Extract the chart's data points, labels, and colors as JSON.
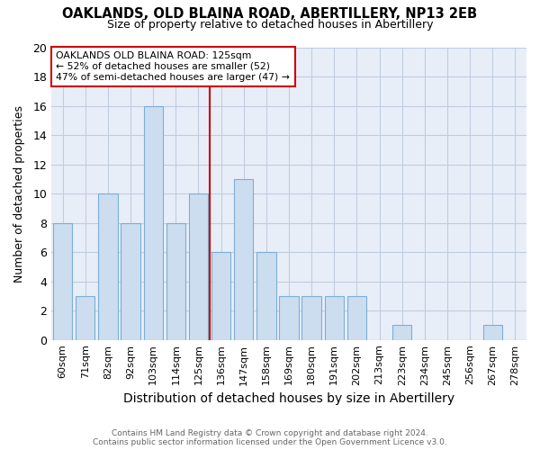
{
  "title": "OAKLANDS, OLD BLAINA ROAD, ABERTILLERY, NP13 2EB",
  "subtitle": "Size of property relative to detached houses in Abertillery",
  "xlabel": "Distribution of detached houses by size in Abertillery",
  "ylabel": "Number of detached properties",
  "categories": [
    "60sqm",
    "71sqm",
    "82sqm",
    "92sqm",
    "103sqm",
    "114sqm",
    "125sqm",
    "136sqm",
    "147sqm",
    "158sqm",
    "169sqm",
    "180sqm",
    "191sqm",
    "202sqm",
    "213sqm",
    "223sqm",
    "234sqm",
    "245sqm",
    "256sqm",
    "267sqm",
    "278sqm"
  ],
  "values": [
    8,
    3,
    10,
    8,
    16,
    8,
    10,
    6,
    11,
    6,
    3,
    3,
    3,
    3,
    0,
    1,
    0,
    0,
    0,
    1,
    0
  ],
  "bar_color": "#ccddf0",
  "bar_edge_color": "#7bafd4",
  "vline_x": 6.5,
  "vline_color": "#cc0000",
  "annotation_title": "OAKLANDS OLD BLAINA ROAD: 125sqm",
  "annotation_line2": "← 52% of detached houses are smaller (52)",
  "annotation_line3": "47% of semi-detached houses are larger (47) →",
  "annotation_box_edge": "#cc0000",
  "ylim": [
    0,
    20
  ],
  "yticks": [
    0,
    2,
    4,
    6,
    8,
    10,
    12,
    14,
    16,
    18,
    20
  ],
  "footer": "Contains HM Land Registry data © Crown copyright and database right 2024.\nContains public sector information licensed under the Open Government Licence v3.0.",
  "plot_bg_color": "#e8eef8",
  "fig_bg_color": "#ffffff",
  "grid_color": "#c0cce0"
}
